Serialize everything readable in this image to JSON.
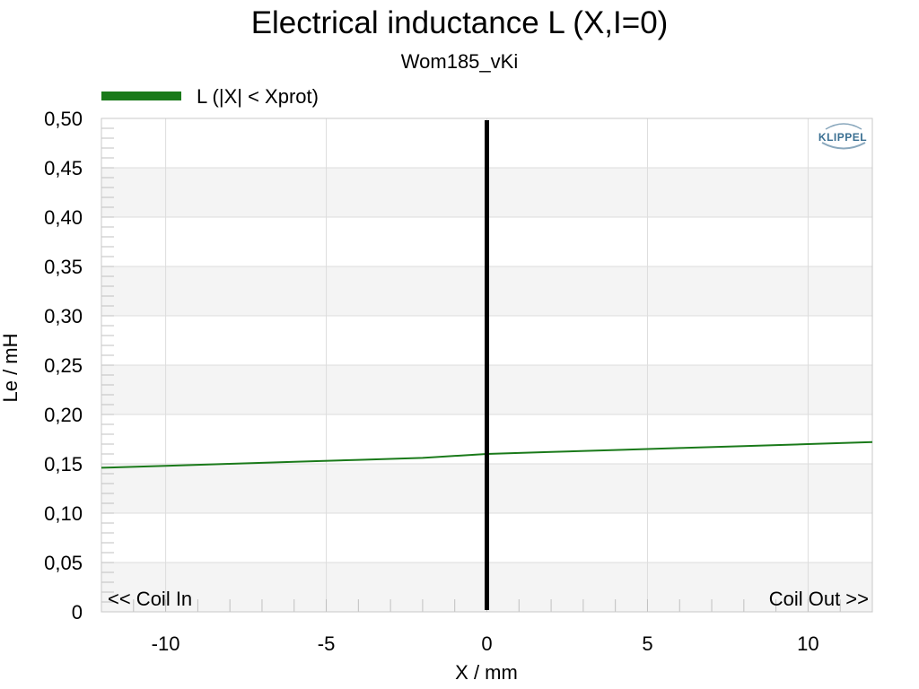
{
  "chart_data": {
    "type": "line",
    "title": "Electrical inductance L (X,I=0)",
    "subtitle": "Wom185_vKi",
    "xlabel": "X / mm",
    "ylabel": "Le / mH",
    "xlim": [
      -12,
      12
    ],
    "ylim": [
      0,
      0.5
    ],
    "x_ticks": [
      -10,
      -5,
      0,
      5,
      10
    ],
    "x_tick_labels": [
      "-10",
      "-5",
      "0",
      "5",
      "10"
    ],
    "y_ticks": [
      0,
      0.05,
      0.1,
      0.15,
      0.2,
      0.25,
      0.3,
      0.35,
      0.4,
      0.45,
      0.5
    ],
    "y_tick_labels": [
      "0",
      "0,05",
      "0,10",
      "0,15",
      "0,20",
      "0,25",
      "0,30",
      "0,35",
      "0,40",
      "0,45",
      "0,50"
    ],
    "grid": true,
    "legend_position": "top-left",
    "series": [
      {
        "name": "L (|X| < Xprot)",
        "color": "#1a7a1a",
        "x": [
          -12,
          -10,
          -8,
          -6,
          -4,
          -2,
          0,
          2,
          4,
          6,
          8,
          10,
          12
        ],
        "y": [
          0.146,
          0.148,
          0.15,
          0.152,
          0.154,
          0.156,
          0.16,
          0.162,
          0.164,
          0.166,
          0.168,
          0.17,
          0.172
        ]
      }
    ],
    "marker_line": {
      "x": 0,
      "color": "#000000"
    },
    "annotations": {
      "left": "<< Coil In",
      "right": "Coil Out >>"
    },
    "logo": "KLIPPEL"
  }
}
